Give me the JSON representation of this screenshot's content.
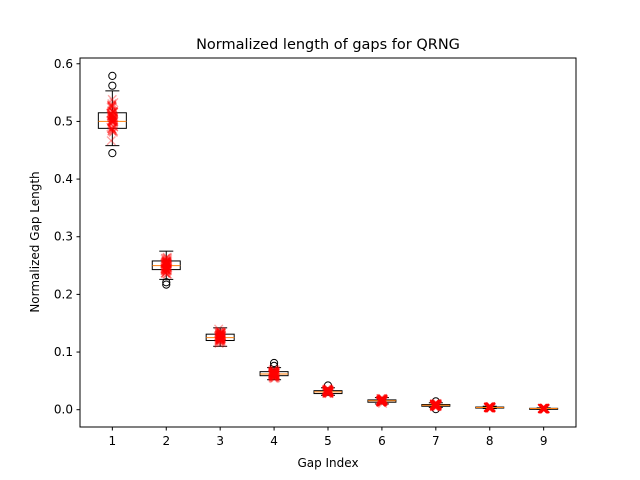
{
  "chart_data": {
    "type": "boxplot",
    "title": "Normalized length of gaps for QRNG",
    "xlabel": "Gap Index",
    "ylabel": "Normalized Gap Length",
    "categories": [
      "1",
      "2",
      "3",
      "4",
      "5",
      "6",
      "7",
      "8",
      "9"
    ],
    "ylim": [
      -0.03,
      0.61
    ],
    "yticks": [
      0.0,
      0.1,
      0.2,
      0.3,
      0.4,
      0.5,
      0.6
    ],
    "ytick_labels": [
      "0.0",
      "0.1",
      "0.2",
      "0.3",
      "0.4",
      "0.5",
      "0.6"
    ],
    "grid": false,
    "colors": {
      "box": "#000000",
      "median": "#ff7f0e",
      "box_fill": "#ffffff",
      "points": "#ff0000"
    },
    "boxes": [
      {
        "category": "1",
        "whislo": 0.458,
        "q1": 0.488,
        "med": 0.5,
        "q3": 0.515,
        "whishi": 0.553,
        "fliers": [
          0.445,
          0.562,
          0.579
        ],
        "points_range": [
          0.455,
          0.555
        ]
      },
      {
        "category": "2",
        "whislo": 0.226,
        "q1": 0.243,
        "med": 0.25,
        "q3": 0.258,
        "whishi": 0.275,
        "fliers": [
          0.217,
          0.221
        ],
        "points_range": [
          0.228,
          0.272
        ]
      },
      {
        "category": "3",
        "whislo": 0.11,
        "q1": 0.12,
        "med": 0.125,
        "q3": 0.131,
        "whishi": 0.142,
        "fliers": [],
        "points_range": [
          0.111,
          0.141
        ]
      },
      {
        "category": "4",
        "whislo": 0.052,
        "q1": 0.059,
        "med": 0.062,
        "q3": 0.066,
        "whishi": 0.073,
        "fliers": [
          0.076,
          0.081
        ],
        "points_range": [
          0.053,
          0.072
        ]
      },
      {
        "category": "5",
        "whislo": 0.025,
        "q1": 0.028,
        "med": 0.031,
        "q3": 0.033,
        "whishi": 0.038,
        "fliers": [
          0.042
        ],
        "points_range": [
          0.026,
          0.038
        ]
      },
      {
        "category": "6",
        "whislo": 0.01,
        "q1": 0.013,
        "med": 0.0155,
        "q3": 0.017,
        "whishi": 0.021,
        "fliers": [],
        "points_range": [
          0.01,
          0.021
        ]
      },
      {
        "category": "7",
        "whislo": 0.004,
        "q1": 0.006,
        "med": 0.0078,
        "q3": 0.009,
        "whishi": 0.012,
        "fliers": [
          0.001,
          0.0145
        ],
        "points_range": [
          0.004,
          0.012
        ]
      },
      {
        "category": "8",
        "whislo": 0.002,
        "q1": 0.0032,
        "med": 0.0039,
        "q3": 0.0046,
        "whishi": 0.006,
        "fliers": [],
        "points_range": [
          0.002,
          0.006
        ]
      },
      {
        "category": "9",
        "whislo": 0.0008,
        "q1": 0.0016,
        "med": 0.002,
        "q3": 0.0024,
        "whishi": 0.0032,
        "fliers": [],
        "points_range": [
          0.0008,
          0.0032
        ]
      }
    ]
  }
}
